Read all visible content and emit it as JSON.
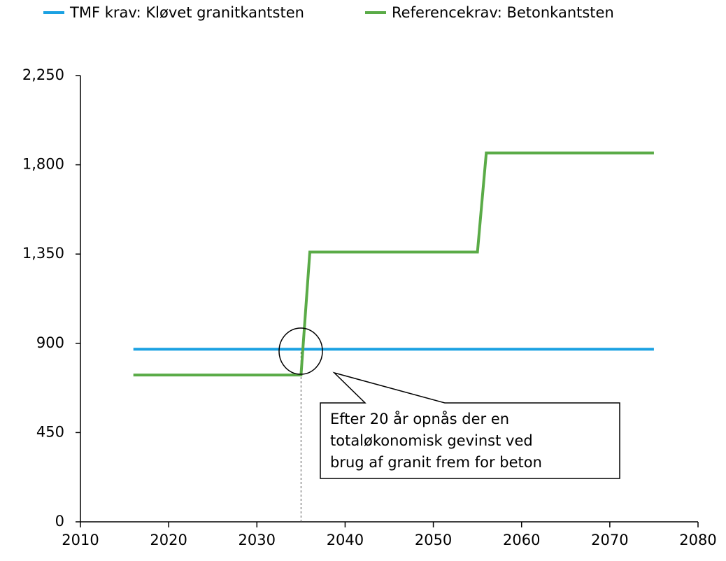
{
  "chart_data": {
    "type": "line",
    "series": [
      {
        "name": "TMF krav: Kløvet granitkantsten",
        "color": "#1ba1e2",
        "x": [
          2016,
          2075
        ],
        "values": [
          870,
          870
        ]
      },
      {
        "name": "Referencekrav: Betonkantsten",
        "color": "#5aab47",
        "x": [
          2016,
          2035,
          2036,
          2055,
          2056,
          2075
        ],
        "values": [
          740,
          740,
          1360,
          1360,
          1860,
          1860
        ]
      }
    ],
    "xlim": [
      2010,
      2080
    ],
    "xticks": [
      2010,
      2020,
      2030,
      2040,
      2050,
      2060,
      2070,
      2080
    ],
    "ylim": [
      0,
      2250
    ],
    "yticks": [
      0,
      450,
      900,
      1350,
      1800,
      2250
    ],
    "ytick_labels": [
      "0",
      "450",
      "900",
      "1,350",
      "1,800",
      "2,250"
    ],
    "annotation": [
      "Efter 20 år opnås der en",
      "totaløkonomisk gevinst ved",
      "brug af granit frem for beton"
    ],
    "legend": "top"
  }
}
